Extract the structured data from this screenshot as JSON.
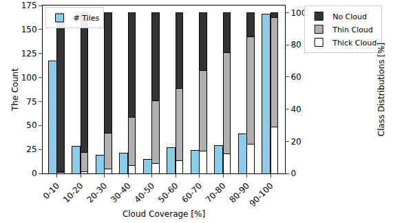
{
  "chart_data": {
    "type": "bar",
    "x_label": "Cloud Coverage [%]",
    "y_label": "The Count",
    "y2_label": "Class Distributions [%]",
    "categories": [
      "0-10",
      "10-20",
      "20-30",
      "30-40",
      "40-50",
      "50-60",
      "60-70",
      "70-80",
      "80-90",
      "90-100"
    ],
    "series": [
      {
        "name": "# Tiles",
        "color": "#87ceeb",
        "values": [
          117,
          28,
          19,
          21,
          15,
          27,
          24,
          29,
          41,
          166
        ]
      },
      {
        "name": "Thick Cloud",
        "color": "#ffffff",
        "axis": "y2",
        "values": [
          0.5,
          1,
          3,
          5,
          6,
          8,
          14,
          12,
          18,
          29
        ]
      },
      {
        "name": "Thin Cloud",
        "color": "#b0b0b0",
        "axis": "y2",
        "values": [
          0.5,
          12,
          22,
          30,
          39,
          45,
          50,
          63,
          67,
          68
        ]
      },
      {
        "name": "No Cloud",
        "color": "#333333",
        "axis": "y2",
        "values": [
          99,
          87,
          75,
          65,
          55,
          47,
          36,
          25,
          15,
          3
        ]
      }
    ],
    "stacked": true,
    "ylim": [
      0,
      175
    ],
    "yticks": [
      0,
      25,
      50,
      75,
      100,
      125,
      150,
      175
    ],
    "y2lim": [
      0,
      104.5
    ],
    "y2ticks": [
      0,
      20,
      40,
      60,
      80,
      100
    ],
    "legend": "upper left"
  }
}
